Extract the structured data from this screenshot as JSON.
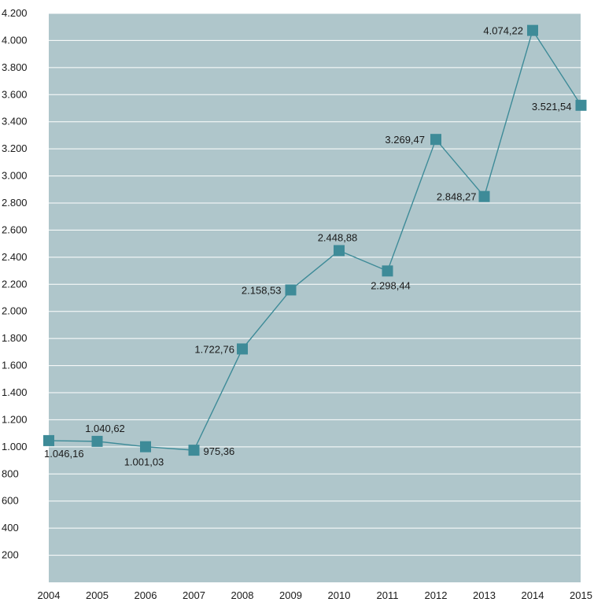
{
  "chart_data": {
    "type": "line",
    "title": "",
    "xlabel": "",
    "ylabel": "",
    "categories": [
      "2004",
      "2005",
      "2006",
      "2007",
      "2008",
      "2009",
      "2010",
      "2011",
      "2012",
      "2013",
      "2014",
      "2015"
    ],
    "series": [
      {
        "values": [
          1046.16,
          1040.62,
          1001.03,
          975.36,
          1722.76,
          2158.53,
          2448.88,
          2298.44,
          3269.47,
          2848.27,
          4074.22,
          3521.54
        ],
        "labels": [
          "1.046,16",
          "1.040,62",
          "1.001,03",
          "975,36",
          "1.722,76",
          "2.158,53",
          "2.448,88",
          "2.298,44",
          "3.269,47",
          "2.848,27",
          "4.074,22",
          "3.521,54"
        ],
        "color": "#3e8b98"
      }
    ],
    "ylim": [
      0,
      4200
    ],
    "yticks": [
      200,
      400,
      600,
      800,
      1000,
      1200,
      1400,
      1600,
      1800,
      2000,
      2200,
      2400,
      2600,
      2800,
      3000,
      3200,
      3400,
      3600,
      3800,
      4000,
      4200
    ],
    "ytick_labels": [
      "200",
      "400",
      "600",
      "800",
      "1.000",
      "1.200",
      "1.400",
      "1.600",
      "1.800",
      "2.000",
      "2.200",
      "2.400",
      "2.600",
      "2.800",
      "3.000",
      "3.200",
      "3.400",
      "3.600",
      "3.800",
      "4.000",
      "4.200"
    ],
    "grid": true,
    "legend": "none",
    "colors": {
      "plot_background": "#afc6cb",
      "gridline": "#ffffff",
      "line": "#3e8b98",
      "marker": "#3e8b98"
    }
  }
}
